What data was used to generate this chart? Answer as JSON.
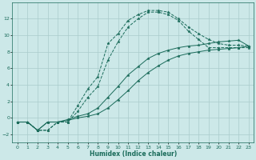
{
  "xlabel": "Humidex (Indice chaleur)",
  "bg_color": "#cce8e8",
  "grid_color": "#aacccc",
  "line_color": "#1a6b5a",
  "xlim": [
    -0.5,
    23.5
  ],
  "ylim": [
    -3.0,
    14.0
  ],
  "xticks": [
    0,
    1,
    2,
    3,
    4,
    5,
    6,
    7,
    8,
    9,
    10,
    11,
    12,
    13,
    14,
    15,
    16,
    17,
    18,
    19,
    20,
    21,
    22,
    23
  ],
  "yticks": [
    -2,
    0,
    2,
    4,
    6,
    8,
    10,
    12
  ],
  "series": [
    {
      "x": [
        0,
        1,
        2,
        3,
        4,
        5,
        6,
        7,
        8,
        9,
        10,
        11,
        12,
        13,
        14,
        15,
        16,
        17,
        18,
        19,
        20,
        21,
        22,
        23
      ],
      "y": [
        -0.5,
        -0.5,
        -1.5,
        -1.5,
        -0.5,
        -0.5,
        1.5,
        3.5,
        5.0,
        9.0,
        10.2,
        11.8,
        12.5,
        13.0,
        13.0,
        12.8,
        12.0,
        11.0,
        10.2,
        9.5,
        9.0,
        8.8,
        8.8,
        8.7
      ],
      "linestyle": "--"
    },
    {
      "x": [
        0,
        1,
        2,
        3,
        4,
        5,
        6,
        7,
        8,
        9,
        10,
        11,
        12,
        13,
        14,
        15,
        16,
        17,
        18,
        19,
        20,
        21,
        22,
        23
      ],
      "y": [
        -0.5,
        -0.5,
        -1.5,
        -1.5,
        -0.5,
        -0.5,
        0.8,
        2.5,
        3.8,
        7.0,
        9.2,
        11.0,
        12.0,
        12.8,
        12.8,
        12.5,
        11.8,
        10.5,
        9.5,
        8.5,
        8.5,
        8.5,
        8.5,
        8.5
      ],
      "linestyle": "--"
    },
    {
      "x": [
        0,
        1,
        2,
        3,
        4,
        5,
        6,
        7,
        8,
        9,
        10,
        11,
        12,
        13,
        14,
        15,
        16,
        17,
        18,
        19,
        20,
        21,
        22,
        23
      ],
      "y": [
        -0.5,
        -0.5,
        -1.5,
        -0.5,
        -0.5,
        -0.2,
        0.2,
        0.5,
        1.2,
        2.5,
        3.8,
        5.2,
        6.2,
        7.2,
        7.8,
        8.2,
        8.5,
        8.7,
        8.8,
        9.0,
        9.2,
        9.3,
        9.4,
        8.7
      ],
      "linestyle": "-"
    },
    {
      "x": [
        0,
        1,
        2,
        3,
        4,
        5,
        6,
        7,
        8,
        9,
        10,
        11,
        12,
        13,
        14,
        15,
        16,
        17,
        18,
        19,
        20,
        21,
        22,
        23
      ],
      "y": [
        -0.5,
        -0.5,
        -1.5,
        -0.5,
        -0.5,
        -0.3,
        0.0,
        0.2,
        0.5,
        1.2,
        2.2,
        3.3,
        4.5,
        5.5,
        6.3,
        7.0,
        7.5,
        7.8,
        8.0,
        8.2,
        8.3,
        8.4,
        8.5,
        8.7
      ],
      "linestyle": "-"
    }
  ]
}
